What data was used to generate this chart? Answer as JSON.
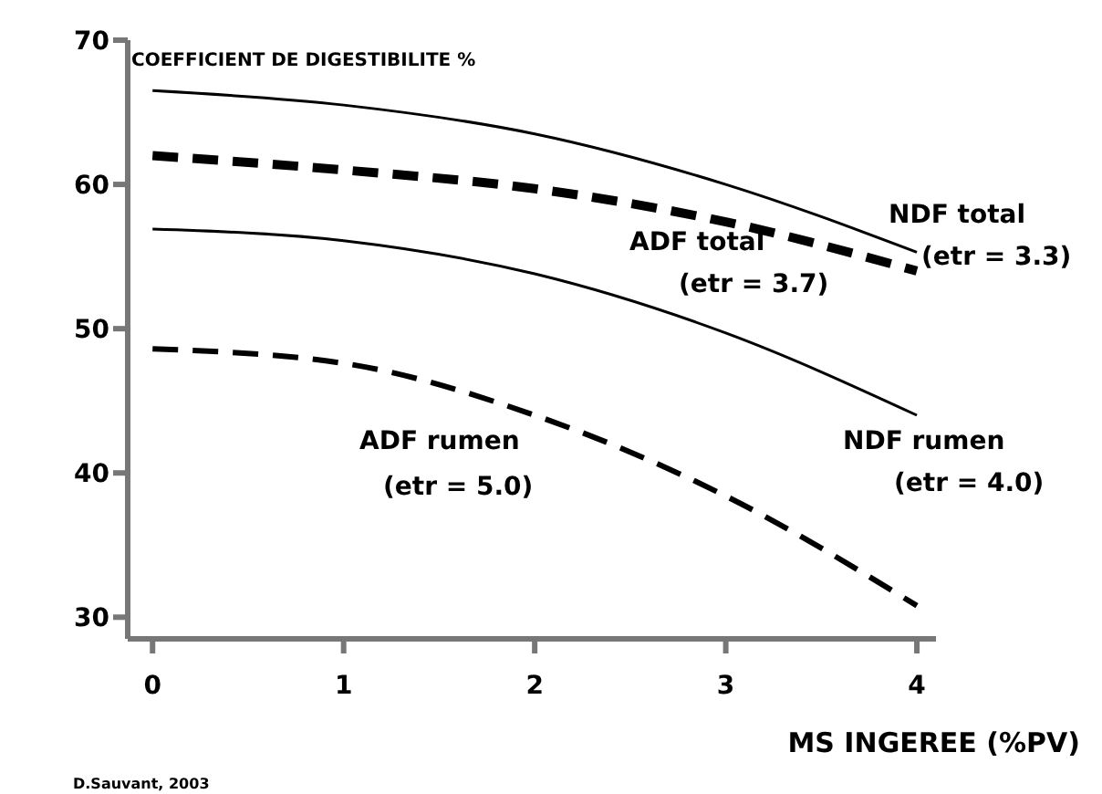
{
  "chart_data": {
    "type": "line",
    "ylabel": "COEFFICIENT DE DIGESTIBILITE %",
    "xlabel": "MS INGEREE (%PV)",
    "x": [
      0,
      1,
      2,
      3,
      4
    ],
    "series": [
      {
        "name": "NDF total",
        "color": "#000000",
        "line_style": "solid",
        "values": [
          66.5,
          65.5,
          63.5,
          60,
          55.3
        ]
      },
      {
        "name": "ADF total",
        "color": "#000000",
        "line_style": "dashed",
        "values": [
          62,
          61,
          59.7,
          57.4,
          54
        ]
      },
      {
        "name": "NDF rumen",
        "color": "#000000",
        "line_style": "solid",
        "values": [
          56.9,
          56.1,
          53.8,
          49.7,
          44
        ]
      },
      {
        "name": "ADF rumen",
        "color": "#000000",
        "line_style": "dashed",
        "values": [
          48.6,
          47.6,
          44,
          38.4,
          30.8
        ]
      }
    ],
    "annotations": [
      "(etr = 3.3)",
      "(etr = 3.7)",
      "(etr = 4.0)",
      "(etr = 5.0)",
      "D.Sauvant, 2003"
    ],
    "xlim": [
      -0.13,
      4.1
    ],
    "xticks": [
      0,
      1,
      2,
      3,
      4
    ],
    "ylim": [
      28.5,
      70
    ],
    "yticks": [
      30,
      40,
      50,
      60,
      70
    ],
    "grid": false,
    "legend": false,
    "marker": "none"
  }
}
